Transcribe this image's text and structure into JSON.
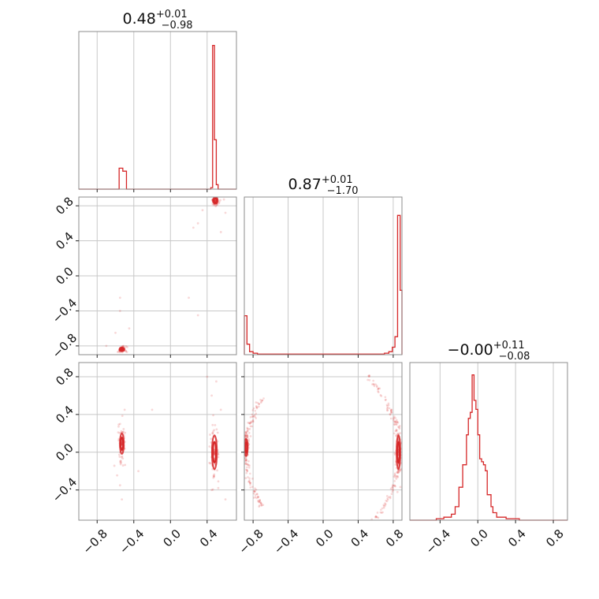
{
  "chart_data": {
    "type": "corner",
    "colors": {
      "series": "#d62728",
      "grid": "#c8c8c8",
      "frame": "#8c8c8c"
    },
    "parameters": [
      {
        "median": "0.48",
        "plus": "+0.01",
        "minus": "−0.98",
        "range": [
          -1.0,
          0.72
        ],
        "ticks": [
          -0.8,
          -0.4,
          0.0,
          0.4
        ]
      },
      {
        "median": "0.87",
        "plus": "+0.01",
        "minus": "−1.70",
        "range": [
          -0.9,
          0.9
        ],
        "ticks": [
          -0.8,
          -0.4,
          0.0,
          0.4,
          0.8
        ]
      },
      {
        "median": "−0.00",
        "plus": "+0.11",
        "minus": "−0.08",
        "range": [
          -0.72,
          0.95
        ],
        "ticks": [
          -0.4,
          0.0,
          0.4,
          0.8
        ]
      }
    ],
    "tick_labels": {
      "-0.8": "−0.8",
      "-0.4": "−0.4",
      "0.0": "0.0",
      "0.4": "0.4",
      "0.8": "0.8"
    },
    "histograms": [
      {
        "edges": [
          -0.56,
          -0.52,
          -0.48,
          0.44,
          0.46,
          0.48,
          0.5,
          0.52,
          0.55
        ],
        "heights": [
          0.14,
          0.12,
          0.0,
          0.01,
          0.96,
          0.33,
          0.03,
          0.0
        ]
      },
      {
        "edges": [
          -0.9,
          -0.87,
          -0.84,
          -0.8,
          -0.75,
          0.7,
          0.75,
          0.79,
          0.82,
          0.85,
          0.88,
          0.9
        ],
        "heights": [
          0.26,
          0.07,
          0.02,
          0.01,
          0.004,
          0.01,
          0.02,
          0.05,
          0.12,
          0.93,
          0.43
        ]
      },
      {
        "edges": [
          -0.44,
          -0.36,
          -0.28,
          -0.24,
          -0.2,
          -0.16,
          -0.12,
          -0.1,
          -0.08,
          -0.06,
          -0.04,
          -0.02,
          0.0,
          0.02,
          0.04,
          0.06,
          0.08,
          0.1,
          0.12,
          0.14,
          0.16,
          0.2,
          0.24,
          0.3,
          0.36,
          0.44
        ],
        "heights": [
          0.01,
          0.02,
          0.04,
          0.09,
          0.22,
          0.37,
          0.57,
          0.68,
          0.72,
          0.97,
          0.8,
          0.74,
          0.57,
          0.41,
          0.39,
          0.37,
          0.33,
          0.17,
          0.17,
          0.09,
          0.05,
          0.02,
          0.02,
          0.01,
          0.01
        ]
      }
    ],
    "pairs": [
      {
        "x_param": 0,
        "y_param": 1,
        "clusters": [
          {
            "cx": 0.49,
            "cy": 0.86,
            "sx": 0.015,
            "sy": 0.02
          },
          {
            "cx": -0.53,
            "cy": -0.84,
            "sx": 0.015,
            "sy": 0.012
          }
        ],
        "scatter": [
          [
            0.3,
            0.6
          ],
          [
            0.25,
            0.55
          ],
          [
            -0.55,
            -0.4
          ],
          [
            -0.6,
            -0.65
          ],
          [
            0.2,
            -0.25
          ],
          [
            -0.55,
            -0.25
          ],
          [
            0.3,
            -0.45
          ],
          [
            0.35,
            0.75
          ],
          [
            -0.7,
            -0.8
          ],
          [
            0.6,
            0.72
          ],
          [
            -0.45,
            -0.6
          ],
          [
            0.55,
            0.5
          ]
        ]
      },
      {
        "x_param": 0,
        "y_param": 2,
        "clusters": [
          {
            "cx": 0.48,
            "cy": 0.0,
            "sx": 0.015,
            "sy": 0.1
          },
          {
            "cx": -0.53,
            "cy": 0.09,
            "sx": 0.012,
            "sy": 0.06
          }
        ],
        "scatter": [
          [
            -0.55,
            0.3
          ],
          [
            -0.53,
            -0.5
          ],
          [
            0.4,
            0.8
          ],
          [
            0.5,
            0.75
          ],
          [
            -0.35,
            -0.2
          ],
          [
            0.45,
            -0.4
          ],
          [
            0.55,
            0.45
          ],
          [
            -0.5,
            0.45
          ],
          [
            -0.2,
            0.45
          ],
          [
            0.6,
            -0.5
          ],
          [
            -0.55,
            -0.35
          ],
          [
            0.45,
            0.6
          ]
        ]
      },
      {
        "x_param": 1,
        "y_param": 2,
        "clusters": [
          {
            "cx": 0.86,
            "cy": 0.0,
            "sx": 0.012,
            "sy": 0.1
          },
          {
            "cx": -0.88,
            "cy": 0.05,
            "sx": 0.01,
            "sy": 0.05
          }
        ],
        "arcs": [
          {
            "side": "right",
            "x_at_zero": 0.87,
            "reach": 0.82
          },
          {
            "side": "left",
            "x_at_zero": -0.88,
            "reach": 0.58
          }
        ]
      }
    ]
  }
}
